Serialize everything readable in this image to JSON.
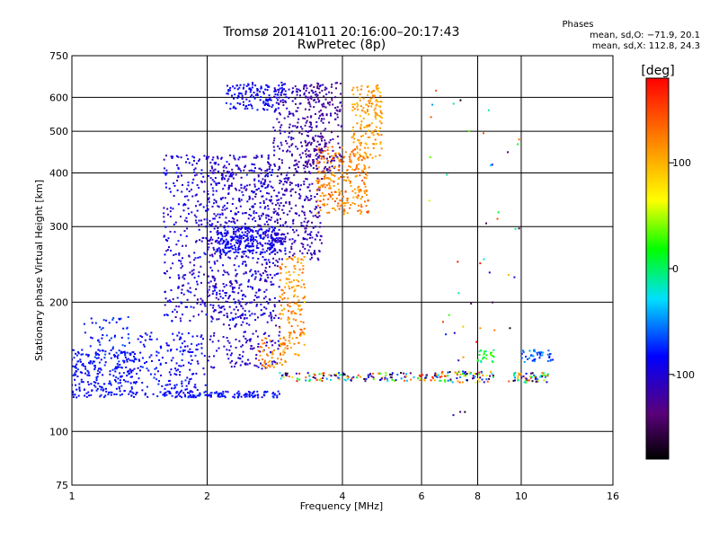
{
  "chart_data": {
    "type": "scatter",
    "title": "Tromsø 20141011 20:16:00–20:17:43",
    "subtitle": "RwPretec (8p)",
    "xlabel": "Frequency [MHz]",
    "ylabel": "Stationary phase Virtual Height [km]",
    "x_scale": "log",
    "y_scale": "log",
    "xlim": [
      1,
      16
    ],
    "ylim": [
      75,
      750
    ],
    "x_ticks": [
      1,
      2,
      4,
      6,
      8,
      10,
      16
    ],
    "x_gridlines": [
      2,
      4,
      6,
      8,
      10
    ],
    "y_ticks": [
      75,
      100,
      200,
      300,
      400,
      500,
      600,
      750
    ],
    "y_gridlines": [
      100,
      200,
      300,
      400,
      500,
      600
    ],
    "grid": true,
    "stats": {
      "title": "Phases",
      "line1": "mean, sd,O: −71.9, 20.1",
      "line2": "mean, sd,X: 112.8, 24.3"
    },
    "colorbar": {
      "label": "[deg]",
      "min": -180,
      "max": 180,
      "ticks": [
        100,
        0,
        -100
      ],
      "colormap": "rainbow"
    },
    "traces": [
      {
        "x_range": [
          1.0,
          1.4
        ],
        "y_range": [
          120,
          155
        ],
        "n": 260,
        "phase": [
          -95,
          -70
        ]
      },
      {
        "x_range": [
          1.05,
          1.35
        ],
        "y_range": [
          150,
          185
        ],
        "n": 50,
        "phase": [
          -90,
          -60
        ]
      },
      {
        "x_range": [
          1.4,
          2.0
        ],
        "y_range": [
          120,
          170
        ],
        "n": 180,
        "phase": [
          -100,
          -70
        ]
      },
      {
        "x_range": [
          1.6,
          2.9
        ],
        "y_range": [
          120,
          124
        ],
        "n": 120,
        "phase": [
          -95,
          -70
        ]
      },
      {
        "x_range": [
          1.6,
          2.8
        ],
        "y_range": [
          180,
          440
        ],
        "n": 650,
        "phase": [
          -120,
          -75
        ]
      },
      {
        "x_range": [
          2.0,
          2.9
        ],
        "y_range": [
          140,
          440
        ],
        "n": 450,
        "phase": [
          -120,
          -90
        ]
      },
      {
        "x_range": [
          2.1,
          3.0
        ],
        "y_range": [
          260,
          300
        ],
        "n": 220,
        "phase": [
          -100,
          -75
        ]
      },
      {
        "x_range": [
          2.2,
          3.0
        ],
        "y_range": [
          560,
          650
        ],
        "n": 150,
        "phase": [
          -95,
          -75
        ]
      },
      {
        "x_range": [
          2.8,
          3.6
        ],
        "y_range": [
          250,
          640
        ],
        "n": 420,
        "phase": [
          -125,
          -100
        ]
      },
      {
        "x_range": [
          3.3,
          4.0
        ],
        "y_range": [
          400,
          650
        ],
        "n": 200,
        "phase": [
          -135,
          -110
        ]
      },
      {
        "x_range": [
          3.5,
          4.6
        ],
        "y_range": [
          320,
          460
        ],
        "n": 260,
        "phase": [
          100,
          150
        ]
      },
      {
        "x_range": [
          4.2,
          4.9
        ],
        "y_range": [
          430,
          640
        ],
        "n": 160,
        "phase": [
          90,
          130
        ]
      },
      {
        "x_range": [
          2.9,
          3.3
        ],
        "y_range": [
          150,
          255
        ],
        "n": 160,
        "phase": [
          90,
          140
        ]
      },
      {
        "x_range": [
          2.6,
          3.0
        ],
        "y_range": [
          140,
          165
        ],
        "n": 50,
        "phase": [
          100,
          140
        ]
      },
      {
        "x_range": [
          2.9,
          6.0
        ],
        "y_range": [
          131,
          137
        ],
        "n": 120,
        "phase": [
          -180,
          180
        ]
      },
      {
        "x_range": [
          6.0,
          8.7
        ],
        "y_range": [
          130,
          138
        ],
        "n": 90,
        "phase": [
          -180,
          180
        ]
      },
      {
        "x_range": [
          8.0,
          8.8
        ],
        "y_range": [
          145,
          155
        ],
        "n": 25,
        "phase": [
          -20,
          40
        ]
      },
      {
        "x_range": [
          9.6,
          11.5
        ],
        "y_range": [
          130,
          137
        ],
        "n": 60,
        "phase": [
          -180,
          180
        ]
      },
      {
        "x_range": [
          10.0,
          11.8
        ],
        "y_range": [
          145,
          155
        ],
        "n": 40,
        "phase": [
          -80,
          -40
        ]
      },
      {
        "x_range": [
          6.2,
          10.0
        ],
        "y_range": [
          100,
          640
        ],
        "n": 45,
        "phase": [
          -180,
          180
        ]
      }
    ]
  }
}
